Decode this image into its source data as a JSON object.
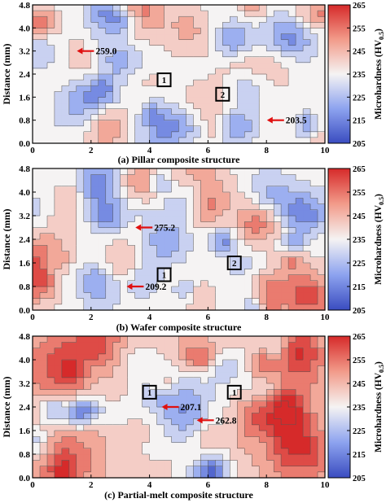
{
  "chart_data": [
    {
      "type": "heatmap",
      "caption": "(a) Pillar composite structure",
      "ylabel": "Distance (mm)",
      "x_ticks": [
        "0",
        "2",
        "4",
        "6",
        "8",
        "10"
      ],
      "y_ticks": [
        "0.0",
        "0.8",
        "1.6",
        "2.4",
        "3.2",
        "4.0",
        "4.8"
      ],
      "xlim": [
        0,
        10
      ],
      "ylim": [
        0,
        4.8
      ],
      "colorbar": {
        "label": "Microhardness (HV",
        "label_sub": "0.5",
        "label_end": ")",
        "ticks": [
          "205",
          "215",
          "225",
          "235",
          "245",
          "255",
          "265"
        ],
        "range": [
          205,
          265
        ]
      },
      "markers": [
        {
          "label": "1",
          "x": 4.5,
          "y": 2.2
        },
        {
          "label": "2",
          "x": 6.5,
          "y": 1.7
        }
      ],
      "annotations": [
        {
          "text": "259.0",
          "x": 1.6,
          "y": 3.2
        },
        {
          "text": "203.5",
          "x": 8.1,
          "y": 0.8
        }
      ]
    },
    {
      "type": "heatmap",
      "caption": "(b) Wafer composite structure",
      "ylabel": "Distance (mm)",
      "x_ticks": [
        "0",
        "2",
        "4",
        "6",
        "8",
        "10"
      ],
      "y_ticks": [
        "0.0",
        "0.8",
        "1.6",
        "2.4",
        "3.2",
        "4.0",
        "4.8"
      ],
      "xlim": [
        0,
        10
      ],
      "ylim": [
        0,
        4.8
      ],
      "colorbar": {
        "label": "Microhardness (HV",
        "label_sub": "0.5",
        "label_end": ")",
        "ticks": [
          "205",
          "215",
          "225",
          "235",
          "245",
          "255",
          "265"
        ],
        "range": [
          205,
          265
        ]
      },
      "markers": [
        {
          "label": "1",
          "x": 4.5,
          "y": 1.2
        },
        {
          "label": "2",
          "x": 6.9,
          "y": 1.6
        }
      ],
      "annotations": [
        {
          "text": "275.2",
          "x": 3.6,
          "y": 2.8
        },
        {
          "text": "209.2",
          "x": 3.3,
          "y": 0.8
        }
      ]
    },
    {
      "type": "heatmap",
      "caption": "(c) Partial-melt composite structure",
      "ylabel": "Distance (mm)",
      "x_ticks": [
        "0",
        "2",
        "4",
        "6",
        "8",
        "10"
      ],
      "y_ticks": [
        "0.0",
        "0.8",
        "1.6",
        "2.4",
        "3.2",
        "4.0",
        "4.8"
      ],
      "xlim": [
        0,
        10
      ],
      "ylim": [
        0,
        4.8
      ],
      "colorbar": {
        "label": "Microhardness (HV",
        "label_sub": "0.5",
        "label_end": ")",
        "ticks": [
          "205",
          "215",
          "225",
          "235",
          "245",
          "255",
          "265"
        ],
        "range": [
          205,
          265
        ]
      },
      "markers": [
        {
          "label": "1",
          "x": 4.0,
          "y": 2.9
        },
        {
          "label": "1",
          "x": 6.9,
          "y": 2.9
        }
      ],
      "annotations": [
        {
          "text": "207.1",
          "x": 4.5,
          "y": 2.4
        },
        {
          "text": "262.8",
          "x": 5.7,
          "y": 1.95
        }
      ]
    }
  ]
}
